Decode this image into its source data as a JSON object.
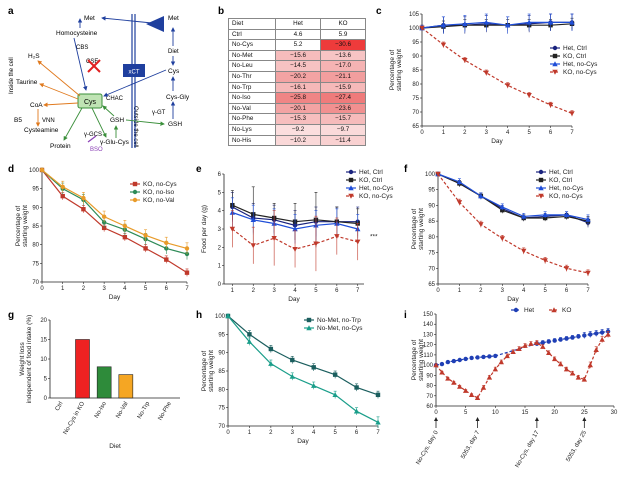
{
  "labels": {
    "a": "a",
    "b": "b",
    "c": "c",
    "d": "d",
    "e": "e",
    "f": "f",
    "g": "g",
    "h": "h",
    "i": "i"
  },
  "diagram": {
    "inside": "Inside the cell",
    "outside": "Outside the cell",
    "met_in": "Met",
    "met_out": "Met",
    "homocysteine": "Homocysteine",
    "cbs": "CBS",
    "cse": "CSE",
    "h2s": "H₂S",
    "taurine": "Taurine",
    "coa": "CoA",
    "b5": "B5",
    "vnn": "VNN",
    "cysteamine": "Cysteamine",
    "cys_box": "Cys",
    "chac": "CHAC",
    "protein": "Protein",
    "gamma_gcs": "γ-GCS",
    "bso": "BSO",
    "glu_cys": "γ-Glu-Cys",
    "gsh_in": "GSH",
    "gamma_gt": "γ-GT",
    "cys_gly": "Cys-Gly",
    "gsh_out": "GSH",
    "xct": "xCT",
    "cys_out": "Cys",
    "diet": "Diet",
    "colors": {
      "arrow_blue": "#1f3f9e",
      "arrow_orange": "#e07a1f",
      "arrow_green": "#3a8f3a",
      "cys_box": "#bfe3b4",
      "cross": "#e02020",
      "bso": "#8a3fb5"
    }
  },
  "table": {
    "headers": [
      "Diet",
      "Het",
      "KO"
    ],
    "rows": [
      {
        "diet": "Ctrl",
        "het": "4.6",
        "ko": "5.9",
        "het_bg": "#ffffff",
        "ko_bg": "#ffffff"
      },
      {
        "diet": "No-Cys",
        "het": "5.2",
        "ko": "−30.6",
        "het_bg": "#ffffff",
        "ko_bg": "#ee3b3b"
      },
      {
        "diet": "No-Met",
        "het": "−15.6",
        "ko": "−13.6",
        "het_bg": "#f6bcbc",
        "ko_bg": "#f7c4c4"
      },
      {
        "diet": "No-Leu",
        "het": "−14.5",
        "ko": "−17.0",
        "het_bg": "#f7c2c2",
        "ko_bg": "#f5b3b3"
      },
      {
        "diet": "No-Thr",
        "het": "−20.2",
        "ko": "−21.1",
        "het_bg": "#f3a3a3",
        "ko_bg": "#f29e9e"
      },
      {
        "diet": "No-Trp",
        "het": "−16.1",
        "ko": "−15.9",
        "het_bg": "#f6b8b8",
        "ko_bg": "#f6b9b9"
      },
      {
        "diet": "No-Iso",
        "het": "−25.8",
        "ko": "−27.4",
        "het_bg": "#f08585",
        "ko_bg": "#ef7b7b"
      },
      {
        "diet": "No-Val",
        "het": "−20.1",
        "ko": "−23.6",
        "het_bg": "#f3a3a3",
        "ko_bg": "#f19090"
      },
      {
        "diet": "No-Phe",
        "het": "−15.3",
        "ko": "−15.7",
        "het_bg": "#f7bebe",
        "ko_bg": "#f6bbbb"
      },
      {
        "diet": "No-Lys",
        "het": "−9.2",
        "ko": "−9.7",
        "het_bg": "#fbdede",
        "ko_bg": "#fadada"
      },
      {
        "diet": "No-His",
        "het": "−10.2",
        "ko": "−11.4",
        "het_bg": "#fad8d8",
        "ko_bg": "#f9d1d1"
      }
    ]
  },
  "chart_data": [
    {
      "panel": "c",
      "type": "line",
      "x": [
        0,
        1,
        2,
        3,
        4,
        5,
        6,
        7
      ],
      "xlabel": "Day",
      "ylabel": "Percentage of starting weight",
      "ylim": [
        65,
        105
      ],
      "yticks": [
        65,
        70,
        75,
        80,
        85,
        90,
        95,
        100,
        105
      ],
      "series": [
        {
          "name": "Het, Ctrl",
          "color": "#1a237e",
          "dash": false,
          "marker": "circle",
          "values": [
            100,
            101,
            101,
            101.5,
            101,
            101.5,
            102,
            102
          ],
          "err": [
            1,
            3,
            3,
            3,
            3,
            3,
            3,
            3
          ]
        },
        {
          "name": "KO, Ctrl",
          "color": "#222222",
          "dash": false,
          "marker": "square",
          "values": [
            100,
            100.5,
            101,
            101,
            101,
            101,
            101,
            101.5
          ],
          "err": [
            1,
            2,
            2,
            2,
            2,
            2,
            2,
            2
          ]
        },
        {
          "name": "Het, no-Cys",
          "color": "#1f4ed8",
          "dash": false,
          "marker": "triangle",
          "values": [
            100,
            101,
            101.5,
            102,
            101,
            102,
            102,
            102
          ],
          "err": [
            1,
            3,
            3,
            3,
            3,
            3,
            3,
            3
          ]
        },
        {
          "name": "KO, no-Cys",
          "color": "#c0392b",
          "dash": true,
          "marker": "tridown",
          "values": [
            100,
            94,
            88.5,
            84,
            79.5,
            76,
            72.5,
            69.5
          ],
          "err": [
            0.5,
            1,
            1,
            1,
            1,
            1,
            1,
            1
          ]
        }
      ]
    },
    {
      "panel": "d",
      "type": "line",
      "x": [
        0,
        1,
        2,
        3,
        4,
        5,
        6,
        7
      ],
      "xlabel": "Day",
      "ylabel": "Percentage of starting weight",
      "ylim": [
        70,
        100
      ],
      "yticks": [
        70,
        75,
        80,
        85,
        90,
        95,
        100
      ],
      "series": [
        {
          "name": "KO, no-Cys",
          "color": "#c0392b",
          "marker": "square",
          "values": [
            100,
            93,
            89.5,
            84.5,
            82,
            79,
            76,
            72.5
          ],
          "err": [
            0.5,
            1,
            1,
            1,
            1,
            1,
            1,
            1
          ]
        },
        {
          "name": "KO, no-Iso",
          "color": "#2e8b57",
          "marker": "circle",
          "values": [
            100,
            95,
            92,
            86,
            84,
            81.5,
            79,
            77.5
          ],
          "err": [
            0.5,
            1.5,
            1.5,
            1.5,
            1.5,
            1.5,
            1.5,
            1.5
          ]
        },
        {
          "name": "KO, no-Val",
          "color": "#e89b2a",
          "marker": "circle",
          "values": [
            100,
            95.5,
            92.5,
            87.5,
            85,
            82.5,
            80.5,
            79
          ],
          "err": [
            0.5,
            1.5,
            1.5,
            1.5,
            1.5,
            1.5,
            1.5,
            1.5
          ]
        }
      ]
    },
    {
      "panel": "e",
      "type": "line",
      "x": [
        1,
        2,
        3,
        4,
        5,
        6,
        7
      ],
      "xlabel": "Day",
      "ylabel": "Food per day (g)",
      "ylim": [
        0,
        6
      ],
      "yticks": [
        0,
        1,
        2,
        3,
        4,
        5,
        6
      ],
      "annotation": "***",
      "series": [
        {
          "name": "Het, Ctrl",
          "color": "#1a237e",
          "dash": false,
          "marker": "circle",
          "values": [
            4.2,
            3.6,
            3.5,
            3.2,
            3.4,
            3.4,
            3.4
          ],
          "err": [
            0.8,
            0.8,
            0.8,
            0.8,
            0.8,
            0.8,
            0.8
          ]
        },
        {
          "name": "KO, Ctrl",
          "color": "#222222",
          "dash": false,
          "marker": "square",
          "values": [
            4.3,
            3.8,
            3.6,
            3.4,
            3.5,
            3.4,
            3.3
          ],
          "err": [
            0.8,
            1.5,
            0.8,
            1,
            1.5,
            0.8,
            0.8
          ]
        },
        {
          "name": "Het, no-Cys",
          "color": "#1f4ed8",
          "dash": false,
          "marker": "triangle",
          "values": [
            3.9,
            3.5,
            3.3,
            3.0,
            3.2,
            3.3,
            3.0
          ],
          "err": [
            0.8,
            0.8,
            0.8,
            0.8,
            0.8,
            0.8,
            0.8
          ]
        },
        {
          "name": "KO, no-Cys",
          "color": "#c0392b",
          "dash": true,
          "marker": "tridown",
          "values": [
            3.0,
            2.1,
            2.5,
            1.9,
            2.2,
            2.6,
            2.3
          ],
          "err": [
            1,
            1,
            1.5,
            1,
            1.5,
            1,
            1
          ]
        }
      ]
    },
    {
      "panel": "f",
      "type": "line",
      "x": [
        0,
        1,
        2,
        3,
        4,
        5,
        6,
        7
      ],
      "xlabel": "Day",
      "ylabel": "Percentage of starting weight",
      "ylim": [
        65,
        100
      ],
      "yticks": [
        65,
        70,
        75,
        80,
        85,
        90,
        95,
        100
      ],
      "series": [
        {
          "name": "Het, Ctrl",
          "color": "#1a237e",
          "dash": false,
          "marker": "circle",
          "values": [
            100,
            97,
            93,
            89,
            86,
            86.5,
            87,
            84.5
          ],
          "err": [
            0.5,
            1,
            1,
            1,
            1,
            1,
            1,
            1.5
          ]
        },
        {
          "name": "KO, Ctrl",
          "color": "#222222",
          "dash": false,
          "marker": "square",
          "values": [
            100,
            97,
            93,
            88.5,
            86,
            86,
            86.5,
            85
          ],
          "err": [
            0.5,
            1,
            1,
            1,
            1,
            1,
            1,
            1.5
          ]
        },
        {
          "name": "Het, no-Cys",
          "color": "#1f4ed8",
          "dash": false,
          "marker": "triangle",
          "values": [
            100,
            97.5,
            93,
            89.5,
            86.5,
            87,
            87,
            85.5
          ],
          "err": [
            0.5,
            1,
            1,
            1,
            1,
            1,
            1,
            1.5
          ]
        },
        {
          "name": "KO, no-Cys",
          "color": "#c0392b",
          "dash": true,
          "marker": "tridown",
          "values": [
            100,
            91,
            84,
            79.5,
            75.5,
            72.5,
            70,
            68.5
          ],
          "err": [
            0.5,
            1,
            1,
            1,
            1,
            1,
            1,
            1
          ]
        }
      ]
    },
    {
      "panel": "g",
      "type": "bar",
      "categories": [
        "Ctrl",
        "No-Cys in KO",
        "No-Iso",
        "No-Val",
        "No-Trp",
        "No-Phe"
      ],
      "values": [
        0,
        15,
        8,
        6,
        0,
        0
      ],
      "colors": [
        "#888888",
        "#ee2222",
        "#2e8b3a",
        "#f5a623",
        "#888888",
        "#888888"
      ],
      "xlabel": "Diet",
      "ylabel": "Weight loss independent of food intake (%)",
      "ylim": [
        0,
        20
      ],
      "yticks": [
        0,
        5,
        10,
        15,
        20
      ]
    },
    {
      "panel": "h",
      "type": "line",
      "x": [
        0,
        1,
        2,
        3,
        4,
        5,
        6,
        7
      ],
      "xlabel": "Day",
      "ylabel": "Percentage of starting weight",
      "ylim": [
        70,
        100
      ],
      "yticks": [
        70,
        75,
        80,
        85,
        90,
        95,
        100
      ],
      "series": [
        {
          "name": "No-Met, no-Trp",
          "color": "#1b5e5e",
          "marker": "square",
          "values": [
            100,
            95,
            91,
            88,
            86,
            84,
            80.5,
            78.5
          ],
          "err": [
            0.5,
            1,
            1,
            1,
            1,
            1,
            1,
            1
          ]
        },
        {
          "name": "No-Met, no-Cys",
          "color": "#1a9e8a",
          "marker": "triangle",
          "values": [
            100,
            93,
            87,
            83.5,
            81,
            78.5,
            74,
            71
          ],
          "err": [
            0.5,
            1,
            1,
            1,
            1,
            1,
            1,
            1.5
          ]
        }
      ]
    },
    {
      "panel": "i",
      "type": "line",
      "xlabel": "",
      "ylabel": "Percentage of starting weight",
      "xlim": [
        0,
        30
      ],
      "xticks": [
        0,
        5,
        10,
        15,
        20,
        25,
        30
      ],
      "ylim": [
        60,
        150
      ],
      "yticks": [
        60,
        70,
        80,
        90,
        100,
        110,
        120,
        130,
        140,
        150
      ],
      "annotations": [
        "No-Cys, day 0",
        "5053, day 7",
        "No-Cys, day 17",
        "5053, day 25"
      ],
      "annotation_x": [
        0,
        7,
        17,
        25
      ],
      "series": [
        {
          "name": "Het",
          "color": "#1f3fb5",
          "dash": true,
          "marker": "circle",
          "x": [
            0,
            1,
            2,
            3,
            4,
            5,
            6,
            7,
            8,
            9,
            10,
            17,
            18,
            19,
            20,
            21,
            22,
            23,
            24,
            25,
            26,
            27,
            28,
            29
          ],
          "values": [
            100,
            101,
            103,
            104,
            105,
            106,
            107,
            107.5,
            108,
            108.5,
            109,
            121,
            122,
            123,
            124,
            125,
            126,
            127,
            128,
            129,
            130,
            131,
            132,
            133
          ],
          "err": [
            1,
            1,
            1,
            1,
            1,
            1,
            1,
            1,
            1,
            1,
            1,
            2,
            2,
            2,
            2,
            2,
            2,
            2,
            2,
            3,
            3,
            3,
            3,
            3
          ]
        },
        {
          "name": "KO",
          "color": "#c0392b",
          "dash": true,
          "marker": "triangle",
          "x": [
            0,
            1,
            2,
            3,
            4,
            5,
            6,
            7,
            8,
            9,
            10,
            11,
            12,
            13,
            14,
            15,
            16,
            17,
            18,
            19,
            20,
            21,
            22,
            23,
            24,
            25,
            26,
            27,
            28,
            29
          ],
          "values": [
            100,
            93,
            87,
            83,
            79,
            75,
            71,
            68,
            78,
            88,
            96,
            103,
            109,
            113,
            116,
            119,
            121,
            122,
            118,
            112,
            106,
            101,
            96,
            92,
            88,
            86,
            100,
            115,
            125,
            130
          ],
          "err": [
            1,
            1,
            1,
            1,
            1,
            1,
            1,
            1,
            2,
            2,
            2,
            2,
            2,
            2,
            2,
            2,
            2,
            2,
            2,
            2,
            2,
            2,
            2,
            2,
            2,
            2,
            3,
            3,
            3,
            3
          ]
        }
      ]
    }
  ]
}
